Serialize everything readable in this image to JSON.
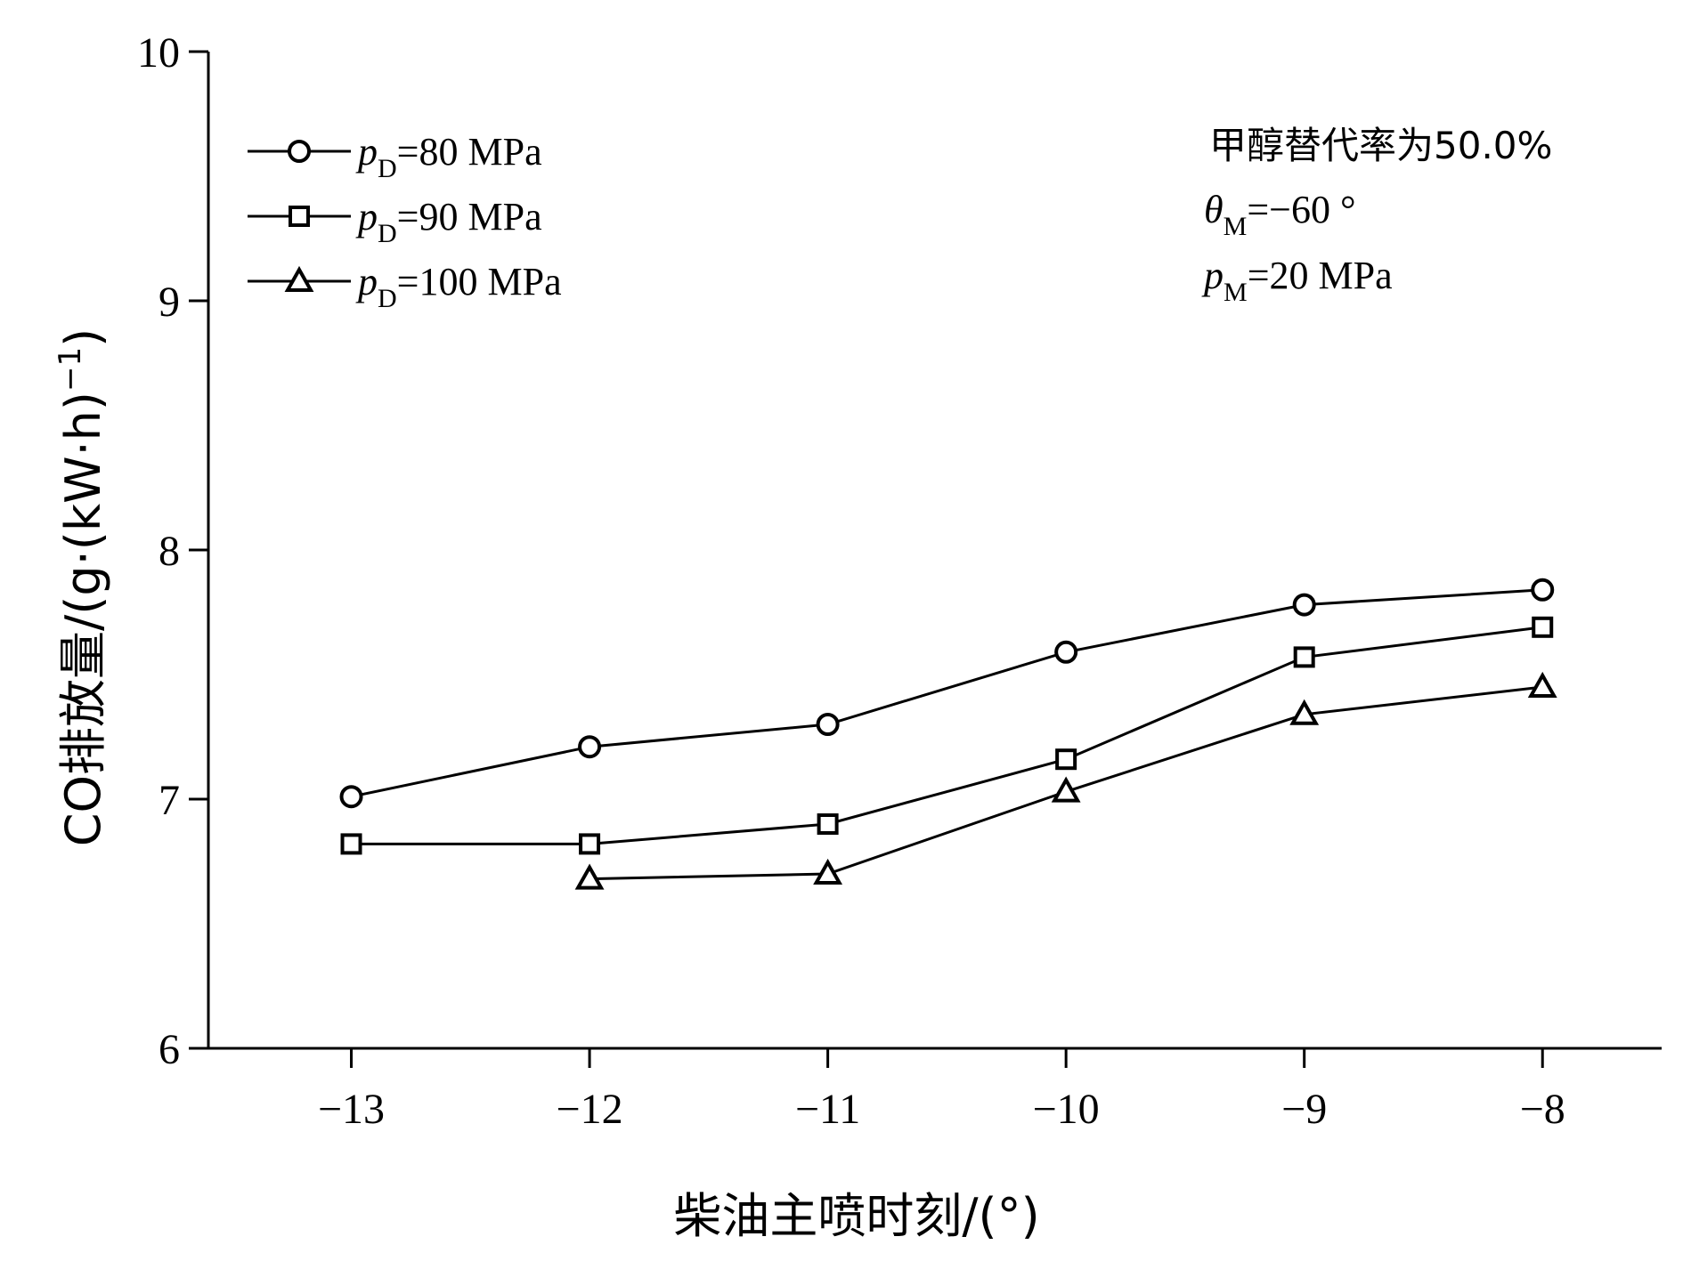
{
  "chart_data": {
    "type": "line",
    "xlabel": "柴油主喷时刻/(°)",
    "ylabel": "CO排放量/(g·(kW·h)",
    "ylabel_sup": "−1",
    "ylabel_close": ")",
    "xlim": [
      -13.6,
      -7.5
    ],
    "ylim": [
      6,
      10
    ],
    "xticks": [
      -13,
      -12,
      -11,
      -10,
      -9,
      -8
    ],
    "xtick_labels": [
      "−13",
      "−12",
      "−11",
      "−10",
      "−9",
      "−8"
    ],
    "yticks": [
      6,
      7,
      8,
      9,
      10
    ],
    "ytick_labels": [
      "6",
      "7",
      "8",
      "9",
      "10"
    ],
    "grid": false,
    "legend_position": "top-left",
    "series": [
      {
        "name": "pD=80 MPa",
        "legend_var": "p",
        "legend_sub": "D",
        "legend_rest": "=80 MPa",
        "marker": "circle",
        "x": [
          -13,
          -12,
          -11,
          -10,
          -9,
          -8
        ],
        "values": [
          7.01,
          7.21,
          7.3,
          7.59,
          7.78,
          7.84
        ]
      },
      {
        "name": "pD=90 MPa",
        "legend_var": "p",
        "legend_sub": "D",
        "legend_rest": "=90 MPa",
        "marker": "square",
        "x": [
          -13,
          -12,
          -11,
          -10,
          -9,
          -8
        ],
        "values": [
          6.82,
          6.82,
          6.9,
          7.16,
          7.57,
          7.69
        ]
      },
      {
        "name": "pD=100 MPa",
        "legend_var": "p",
        "legend_sub": "D",
        "legend_rest": "=100 MPa",
        "marker": "triangle",
        "x": [
          -12,
          -11,
          -10,
          -9,
          -8
        ],
        "values": [
          6.68,
          6.7,
          7.03,
          7.34,
          7.45
        ]
      }
    ],
    "annotations": {
      "line1": "甲醇替代率为50.0%",
      "line2_var": "θ",
      "line2_sub": "M",
      "line2_rest": "=−60 °",
      "line3_var": "p",
      "line3_sub": "M",
      "line3_rest": "=20 MPa"
    }
  },
  "colors": {
    "axis": "#000000",
    "line": "#000000",
    "marker_fill": "#ffffff",
    "background": "#ffffff"
  }
}
